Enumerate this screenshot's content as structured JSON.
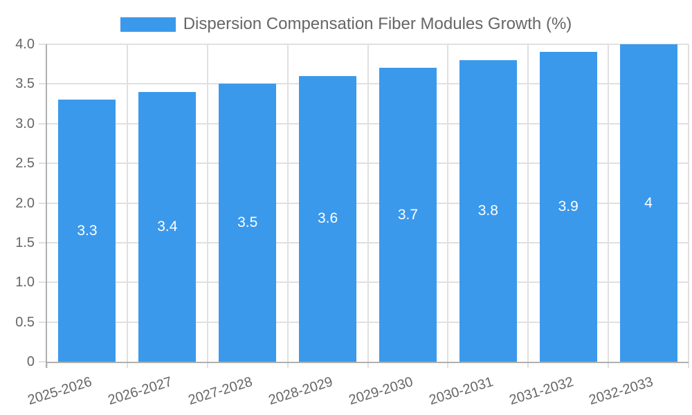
{
  "chart_data": {
    "type": "bar",
    "legend_label": "Dispersion Compensation Fiber Modules Growth (%)",
    "legend_position": "top",
    "categories": [
      "2025-2026",
      "2026-2027",
      "2027-2028",
      "2028-2029",
      "2029-2030",
      "2030-2031",
      "2031-2032",
      "2032-2033"
    ],
    "values": [
      3.3,
      3.4,
      3.5,
      3.6,
      3.7,
      3.8,
      3.9,
      4
    ],
    "value_labels": [
      "3.3",
      "3.4",
      "3.5",
      "3.6",
      "3.7",
      "3.8",
      "3.9",
      "4"
    ],
    "xlabel": "",
    "ylabel": "",
    "ylim": [
      0,
      4
    ],
    "yticks": [
      0,
      0.5,
      1,
      1.5,
      2,
      2.5,
      3,
      3.5,
      4
    ],
    "ytick_labels": [
      "0",
      "0.5",
      "1.0",
      "1.5",
      "2.0",
      "2.5",
      "3.0",
      "3.5",
      "4.0"
    ],
    "grid": true,
    "colors": {
      "bar": "#3B99EC",
      "grid": "#E0E0E0",
      "axis_border": "#AFAFAF",
      "tick_text": "#666666",
      "value_text": "#FFFFFF",
      "background": "#FFFFFF"
    }
  }
}
